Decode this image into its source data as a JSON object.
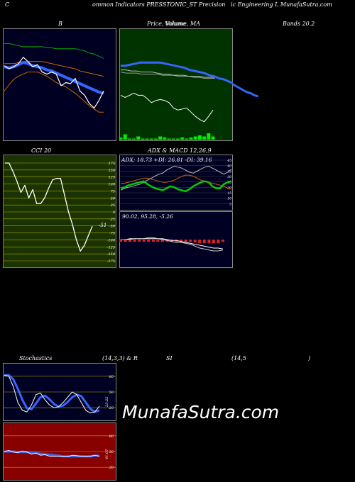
{
  "header": {
    "left": "C",
    "middle": "ommon  Indicators PRESSTONIC_ST Precision",
    "right": "ic Engineering L  MunafaSutra.com"
  },
  "titles": {
    "bollinger": "B",
    "price_volume": "Price,  Volume,  MA",
    "price_overlay": "Volume",
    "bands": "Bands 20.2",
    "cci": "CCI 20",
    "adx_macd": "ADX  & MACD 12,26,9",
    "adx_values": "ADX: 18.73  +DI: 26.81 -DI: 39.16",
    "macd_values": "90.02,  95.28,  -5.26",
    "stoch_a": "Stochastics",
    "stoch_b": "(14,3,3) & R",
    "stoch_c": "SI",
    "stoch_d": "(14,5",
    "stoch_e": ")",
    "cci_last": "-51",
    "stoch_last": "23.22",
    "rsi_last": "41.07"
  },
  "watermark": "MunafaSutra.com",
  "colors": {
    "bollinger_bg": "#000022",
    "price_bg": "#003300",
    "cci_bg": "#1a3300",
    "adx_bg": "#000022",
    "stoch_bg": "#000022",
    "rsi_bg": "#880000",
    "price_line": "#ffffff",
    "ma_blue": "#3366ff",
    "upper_band": "#00aa00",
    "lower_band": "#cc6600",
    "plus_di": "#00cc00",
    "minus_di": "#cc6600",
    "volume": "#00ee00"
  },
  "chart_data": [
    {
      "type": "line",
      "name": "bollinger",
      "ylim": [
        0,
        100
      ],
      "series": [
        {
          "name": "upper",
          "values": [
            89,
            89,
            88,
            87,
            86,
            86,
            86,
            86,
            86,
            85,
            85,
            84,
            84,
            84,
            84,
            84,
            83,
            82,
            80,
            79,
            77,
            75
          ]
        },
        {
          "name": "middle",
          "values": [
            70,
            70,
            70,
            71,
            72,
            72,
            72,
            72,
            72,
            71,
            70,
            69,
            68,
            67,
            66,
            65,
            63,
            62,
            61,
            60,
            59,
            58
          ]
        },
        {
          "name": "lower",
          "values": [
            44,
            50,
            55,
            58,
            60,
            62,
            62,
            62,
            60,
            58,
            55,
            52,
            50,
            48,
            45,
            42,
            38,
            34,
            30,
            27,
            24,
            24
          ]
        },
        {
          "name": "price",
          "values": [
            68,
            65,
            67,
            70,
            76,
            72,
            67,
            69,
            62,
            60,
            62,
            60,
            49,
            52,
            51,
            56,
            44,
            40,
            32,
            28,
            35,
            44
          ]
        },
        {
          "name": "ma",
          "values": [
            67,
            66,
            67,
            69,
            71,
            70,
            68,
            67,
            66,
            64,
            63,
            61,
            59,
            57,
            55,
            53,
            51,
            49,
            47,
            45,
            43,
            42
          ]
        }
      ]
    },
    {
      "type": "line",
      "name": "price_volume_ma",
      "ylim": [
        0,
        100
      ],
      "series": [
        {
          "name": "price",
          "values": [
            40,
            38,
            40,
            42,
            40,
            40,
            37,
            33,
            35,
            36,
            35,
            33,
            28,
            26,
            27,
            28,
            24,
            20,
            17,
            15,
            20,
            26
          ]
        },
        {
          "name": "ma_long",
          "values": [
            68,
            68,
            69,
            70,
            71,
            71,
            71,
            71,
            71,
            70,
            69,
            68,
            67,
            66,
            64,
            63,
            62,
            61,
            59,
            58,
            56,
            55,
            53,
            51,
            49,
            47,
            45,
            43,
            42,
            40,
            39
          ]
        },
        {
          "name": "ma_short",
          "values": [
            64,
            64,
            63,
            63,
            62,
            62,
            62,
            61,
            60,
            60,
            59,
            59,
            59,
            58,
            58,
            58,
            57,
            57,
            57
          ]
        },
        {
          "name": "ma_mid",
          "values": [
            62,
            61,
            61,
            61,
            60,
            60,
            60,
            60,
            59,
            59,
            59,
            58,
            58,
            58,
            57,
            57,
            56,
            56,
            56
          ]
        }
      ],
      "volume": [
        2,
        5,
        1,
        1,
        3,
        1,
        1,
        1,
        1,
        3,
        2,
        1,
        1,
        1,
        2,
        1,
        2,
        3,
        4,
        3,
        6,
        3
      ]
    },
    {
      "type": "line",
      "name": "cci",
      "ylim": [
        -175,
        175
      ],
      "ticks": [
        "175",
        "150",
        "125",
        "100",
        "75",
        "50",
        "25",
        "0",
        "-25",
        "-50",
        "-75",
        "-100",
        "-125",
        "-150",
        "-175"
      ],
      "series": [
        {
          "name": "cci",
          "values": [
            175,
            175,
            145,
            110,
            70,
            95,
            50,
            80,
            30,
            30,
            50,
            85,
            115,
            120,
            120,
            60,
            0,
            -45,
            -100,
            -140,
            -120,
            -85,
            -51
          ]
        }
      ]
    },
    {
      "type": "line",
      "name": "adx_dmi",
      "ylim": [
        0,
        50
      ],
      "ticks": [
        "45",
        "40",
        "35",
        "30",
        "25",
        "20",
        "15",
        "10",
        "5"
      ],
      "series": [
        {
          "name": "adx",
          "values": [
            25,
            25,
            26,
            27,
            28,
            29,
            30,
            30,
            29,
            28,
            27,
            26,
            26,
            27,
            28,
            30,
            32,
            33,
            33,
            32,
            30,
            28,
            27,
            26,
            25,
            24,
            23,
            22,
            20,
            19
          ]
        },
        {
          "name": "plus_di",
          "values": [
            20,
            21,
            23,
            24,
            25,
            26,
            27,
            24,
            22,
            20,
            19,
            18,
            20,
            22,
            21,
            19,
            18,
            17,
            19,
            22,
            24,
            26,
            27,
            26,
            22,
            20,
            20,
            24,
            26,
            27
          ]
        },
        {
          "name": "minus_di",
          "values": [
            18,
            20,
            21,
            22,
            23,
            24,
            26,
            28,
            30,
            32,
            34,
            35,
            38,
            40,
            42,
            41,
            40,
            38,
            36,
            35,
            37,
            39,
            41,
            42,
            40,
            38,
            36,
            34,
            36,
            39
          ]
        }
      ]
    },
    {
      "type": "line",
      "name": "macd",
      "series": [
        {
          "name": "macd",
          "values": [
            0,
            0,
            0,
            1,
            1,
            1,
            2,
            2,
            1,
            0,
            -1,
            -2,
            -3,
            -3,
            -4,
            -5,
            -7,
            -9,
            -10,
            -11,
            -12,
            -12,
            -11
          ]
        },
        {
          "name": "signal",
          "values": [
            0,
            0,
            1,
            1,
            1,
            1,
            1,
            1,
            1,
            1,
            0,
            -1,
            -1,
            -2,
            -3,
            -4,
            -5,
            -6,
            -7,
            -8,
            -9,
            -9,
            -10
          ]
        }
      ]
    },
    {
      "type": "line",
      "name": "stochastics",
      "ylim": [
        0,
        100
      ],
      "ticks": [
        "80",
        "50",
        "20"
      ],
      "series": [
        {
          "name": "k",
          "values": [
            82,
            80,
            60,
            30,
            15,
            12,
            25,
            45,
            48,
            35,
            25,
            20,
            22,
            30,
            40,
            50,
            45,
            30,
            15,
            10,
            12,
            23
          ]
        },
        {
          "name": "d",
          "values": [
            82,
            82,
            74,
            56,
            35,
            19,
            17,
            28,
            40,
            43,
            36,
            27,
            22,
            24,
            31,
            40,
            45,
            42,
            30,
            18,
            12,
            15
          ]
        }
      ]
    },
    {
      "type": "line",
      "name": "rsi",
      "ylim": [
        0,
        100
      ],
      "ticks": [
        "80",
        "50",
        "20"
      ],
      "series": [
        {
          "name": "rsi",
          "values": [
            50,
            52,
            49,
            48,
            51,
            49,
            45,
            47,
            43,
            44,
            41,
            41,
            41,
            40,
            40,
            43,
            42,
            41,
            40,
            41,
            43,
            41
          ]
        },
        {
          "name": "ma",
          "values": [
            50,
            50,
            50,
            49,
            49,
            49,
            48,
            47,
            46,
            45,
            44,
            43,
            42,
            41,
            41,
            41,
            41,
            41,
            41,
            41,
            42,
            42
          ]
        }
      ]
    }
  ]
}
